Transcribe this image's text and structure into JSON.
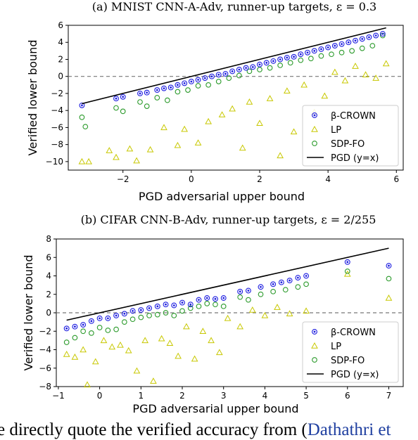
{
  "chart_data": [
    {
      "type": "scatter",
      "title": "(a) MNIST CNN-A-Adv, runner-up targets, ε = 0.3",
      "xlabel": "PGD adversarial upper bound",
      "ylabel": "Verified lower bound",
      "xlim": [
        -3.6,
        6.2
      ],
      "ylim": [
        -11,
        6
      ],
      "xticks": [
        -2,
        0,
        2,
        4,
        6
      ],
      "yticks": [
        -10,
        -8,
        -6,
        -4,
        -2,
        0,
        2,
        4,
        6
      ],
      "grid": false,
      "legend_position": "lower-right",
      "reference_line": {
        "name": "PGD (y=x)",
        "x": [
          -3.2,
          5.7
        ],
        "y": [
          -3.2,
          5.7
        ]
      },
      "zero_line": 0,
      "series": [
        {
          "name": "β-CROWN",
          "marker": "circle-filled",
          "color": "#1f1fe0",
          "x": [
            -3.2,
            -2.2,
            -2.0,
            -1.5,
            -1.3,
            -1.0,
            -0.8,
            -0.6,
            -0.4,
            -0.2,
            0.0,
            0.2,
            0.4,
            0.6,
            0.8,
            1.0,
            1.2,
            1.4,
            1.6,
            1.8,
            2.0,
            2.2,
            2.4,
            2.6,
            2.8,
            3.0,
            3.2,
            3.4,
            3.6,
            3.8,
            4.0,
            4.2,
            4.4,
            4.6,
            4.8,
            5.0,
            5.2,
            5.4,
            5.6
          ],
          "y": [
            -3.4,
            -2.6,
            -2.4,
            -2.0,
            -1.9,
            -1.6,
            -1.4,
            -1.3,
            -1.0,
            -0.8,
            -0.6,
            -0.4,
            -0.2,
            0.0,
            0.2,
            0.3,
            0.6,
            0.8,
            1.0,
            1.1,
            1.4,
            1.6,
            1.8,
            2.0,
            2.2,
            2.3,
            2.6,
            2.8,
            3.0,
            3.2,
            3.4,
            3.6,
            3.8,
            4.0,
            4.2,
            4.4,
            4.6,
            4.8,
            5.0
          ]
        },
        {
          "name": "LP",
          "marker": "triangle",
          "color": "#c8c800",
          "x": [
            -3.2,
            -3.0,
            -2.4,
            -2.2,
            -1.8,
            -1.6,
            -1.2,
            -0.8,
            -0.4,
            -0.2,
            0.2,
            0.5,
            0.9,
            1.2,
            1.5,
            1.7,
            2.0,
            2.3,
            2.6,
            2.8,
            3.0,
            3.3,
            3.6,
            3.9,
            4.2,
            4.5,
            4.8,
            5.1,
            5.4,
            5.7
          ],
          "y": [
            -10.0,
            -10.0,
            -8.7,
            -9.5,
            -8.5,
            -9.9,
            -8.6,
            -6.0,
            -8.1,
            -6.2,
            -7.8,
            -5.3,
            -4.5,
            -3.8,
            -8.4,
            -3.0,
            -5.5,
            -2.6,
            -9.3,
            -1.7,
            -6.5,
            -1.0,
            -4.2,
            -2.3,
            0.5,
            -0.5,
            1.2,
            0.2,
            -0.2,
            1.5
          ]
        },
        {
          "name": "SDP-FO",
          "marker": "circle-open",
          "color": "#2a9a2a",
          "x": [
            -3.2,
            -3.1,
            -2.2,
            -2.0,
            -1.5,
            -1.3,
            -1.0,
            -0.7,
            -0.4,
            -0.1,
            0.2,
            0.5,
            0.8,
            1.1,
            1.4,
            1.7,
            2.0,
            2.3,
            2.6,
            2.9,
            3.2,
            3.5,
            3.8,
            4.1,
            4.4,
            4.7,
            5.0,
            5.3,
            5.6
          ],
          "y": [
            -4.8,
            -5.9,
            -3.7,
            -4.1,
            -3.0,
            -3.5,
            -2.5,
            -2.8,
            -1.8,
            -1.6,
            -1.1,
            -1.0,
            -0.6,
            -0.2,
            0.1,
            0.6,
            0.8,
            1.0,
            1.3,
            1.6,
            1.9,
            2.1,
            2.4,
            2.6,
            2.8,
            3.0,
            3.3,
            3.6,
            4.8
          ]
        }
      ]
    },
    {
      "type": "scatter",
      "title": "(b) CIFAR CNN-B-Adv, runner-up targets, ε = 2/255",
      "xlabel": "PGD adversarial upper bound",
      "ylabel": "Verified lower bound",
      "xlim": [
        -1.05,
        7.35
      ],
      "ylim": [
        -8,
        8
      ],
      "xticks": [
        -1,
        0,
        1,
        2,
        3,
        4,
        5,
        6,
        7
      ],
      "yticks": [
        -8,
        -6,
        -4,
        -2,
        0,
        2,
        4,
        6,
        8
      ],
      "grid": false,
      "legend_position": "lower-right",
      "reference_line": {
        "name": "PGD (y=x)",
        "x": [
          -0.8,
          7.0
        ],
        "y": [
          -0.8,
          7.0
        ]
      },
      "zero_line": 0,
      "series": [
        {
          "name": "β-CROWN",
          "marker": "circle-filled",
          "color": "#1f1fe0",
          "x": [
            -0.8,
            -0.6,
            -0.4,
            -0.2,
            0.0,
            0.2,
            0.4,
            0.6,
            0.8,
            1.0,
            1.2,
            1.4,
            1.6,
            1.8,
            2.0,
            2.2,
            2.4,
            2.6,
            2.8,
            3.0,
            3.4,
            3.6,
            3.9,
            4.2,
            4.4,
            4.6,
            4.8,
            5.0,
            6.0,
            7.0
          ],
          "y": [
            -1.7,
            -1.5,
            -1.3,
            -0.9,
            -0.6,
            -0.6,
            -0.3,
            -0.1,
            0.2,
            0.3,
            0.5,
            0.7,
            0.9,
            0.8,
            1.1,
            0.9,
            1.4,
            1.6,
            1.5,
            1.6,
            2.3,
            2.4,
            2.8,
            3.1,
            3.3,
            3.5,
            3.8,
            4.0,
            5.5,
            5.1
          ]
        },
        {
          "name": "LP",
          "marker": "triangle",
          "color": "#c8c800",
          "x": [
            -0.8,
            -0.6,
            -0.4,
            -0.3,
            -0.1,
            0.1,
            0.3,
            0.5,
            0.7,
            0.9,
            1.1,
            1.3,
            1.5,
            1.7,
            1.9,
            2.1,
            2.3,
            2.5,
            2.7,
            2.9,
            3.1,
            3.4,
            3.7,
            4.0,
            4.3,
            4.6,
            5.0,
            6.0,
            7.0
          ],
          "y": [
            -4.5,
            -4.8,
            -4.0,
            -7.8,
            -5.3,
            -3.0,
            -3.7,
            -3.5,
            -4.1,
            -6.3,
            -3.0,
            -7.4,
            -2.8,
            -3.3,
            -4.7,
            -1.5,
            -5.0,
            -2.0,
            -3.0,
            -4.3,
            -0.6,
            -1.5,
            0.3,
            -0.3,
            0.6,
            -0.1,
            0.2,
            4.2,
            1.6
          ]
        },
        {
          "name": "SDP-FO",
          "marker": "circle-open",
          "color": "#2a9a2a",
          "x": [
            -0.8,
            -0.6,
            -0.4,
            -0.2,
            0.0,
            0.2,
            0.4,
            0.6,
            0.8,
            1.0,
            1.2,
            1.4,
            1.6,
            1.8,
            2.0,
            2.2,
            2.4,
            2.6,
            2.8,
            3.0,
            3.4,
            3.6,
            3.9,
            4.2,
            4.5,
            4.8,
            5.0,
            6.0,
            7.0
          ],
          "y": [
            -3.2,
            -2.7,
            -2.0,
            -2.2,
            -1.6,
            -1.9,
            -1.8,
            -1.0,
            -0.7,
            -0.5,
            -0.3,
            -0.2,
            0.0,
            -0.3,
            0.2,
            0.5,
            0.7,
            1.0,
            0.9,
            0.7,
            1.7,
            1.4,
            2.0,
            2.3,
            2.5,
            2.8,
            3.1,
            4.5,
            3.7
          ]
        }
      ]
    }
  ],
  "bottom_text": {
    "prefix": "e directly quote the verified accuracy from (",
    "link": "Dathathri et"
  }
}
